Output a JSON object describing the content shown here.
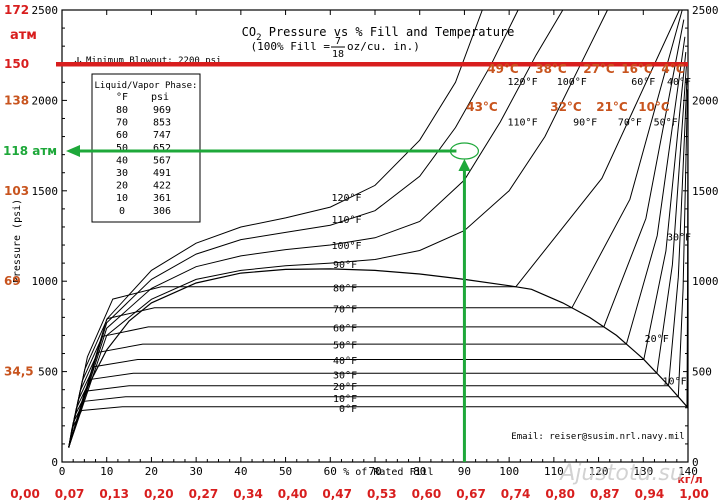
{
  "chart_data": {
    "type": "line",
    "title_main": "CO",
    "title_sub2": "2",
    "title_rest": " Pressure vs % Fill and Temperature",
    "subtitle_pre": "(100% Fill = ",
    "subtitle_num": "7",
    "subtitle_den": "18",
    "subtitle_post": " oz/cu. in.)",
    "xlabel": "% of Rated Fill",
    "ylabel": "Pressure (psi)",
    "xlim": [
      0,
      140
    ],
    "ylim": [
      0,
      2500
    ],
    "x_ticks": [
      0,
      10,
      20,
      30,
      40,
      50,
      60,
      70,
      80,
      90,
      100,
      110,
      120,
      130,
      140
    ],
    "y_ticks": [
      0,
      500,
      1000,
      1500,
      2000,
      2500
    ],
    "blowout_label": "Minimum Blowout: 2200 psi",
    "blowout_psi": 2200,
    "phase_table": {
      "title": "Liquid/Vapor Phase:",
      "col1": "°F",
      "col2": "psi",
      "rows": [
        [
          "80",
          "969"
        ],
        [
          "70",
          "853"
        ],
        [
          "60",
          "747"
        ],
        [
          "50",
          "652"
        ],
        [
          "40",
          "567"
        ],
        [
          "30",
          "491"
        ],
        [
          "20",
          "422"
        ],
        [
          "10",
          "361"
        ],
        [
          "0",
          "306"
        ]
      ]
    },
    "series": [
      {
        "name": "0°F",
        "fill_start": 1.0,
        "y_plateau": 306
      },
      {
        "name": "10°F",
        "fill_start": 1.045,
        "y_plateau": 361
      },
      {
        "name": "20°F",
        "fill_start": 1.09,
        "y_plateau": 422
      },
      {
        "name": "30°F",
        "fill_start": 1.13,
        "y_plateau": 491
      },
      {
        "name": "40°F",
        "fill_start": 1.18,
        "y_plateau": 567
      },
      {
        "name": "50°F",
        "fill_start": 1.23,
        "y_plateau": 652
      },
      {
        "name": "60°F",
        "fill_start": 1.3,
        "y_plateau": 747
      },
      {
        "name": "70°F",
        "fill_start": 1.37,
        "y_plateau": 853
      },
      {
        "name": "80°F",
        "fill_start": 1.45,
        "y_plateau": 969
      }
    ],
    "curve_labels_left": [
      {
        "text": "120°F",
        "x": 63,
        "y": 1465
      },
      {
        "text": "110°F",
        "x": 63,
        "y": 1345
      },
      {
        "text": "100°F",
        "x": 63,
        "y": 1200
      },
      {
        "text": "90°F",
        "x": 63,
        "y": 1095
      },
      {
        "text": "80°F",
        "x": 63,
        "y": 965
      },
      {
        "text": "70°F",
        "x": 63,
        "y": 850
      },
      {
        "text": "60°F",
        "x": 63,
        "y": 745
      },
      {
        "text": "50°F",
        "x": 63,
        "y": 650
      },
      {
        "text": "40°F",
        "x": 63,
        "y": 565
      },
      {
        "text": "30°F",
        "x": 63,
        "y": 485
      },
      {
        "text": "20°F",
        "x": 63,
        "y": 420
      },
      {
        "text": "10°F",
        "x": 63,
        "y": 355
      },
      {
        "text": "0°F",
        "x": 63,
        "y": 300
      }
    ],
    "curve_labels_right": [
      {
        "text": "120°F",
        "x": 103,
        "y": 2085
      },
      {
        "text": "110°F",
        "x": 103,
        "y": 1860
      },
      {
        "text": "100°F",
        "x": 114,
        "y": 2085
      },
      {
        "text": "90°F",
        "x": 117,
        "y": 1860
      },
      {
        "text": "70°F",
        "x": 127,
        "y": 1860
      },
      {
        "text": "60°F",
        "x": 130,
        "y": 2085
      },
      {
        "text": "50°F",
        "x": 135,
        "y": 1860
      },
      {
        "text": "40°F",
        "x": 138,
        "y": 2085
      },
      {
        "text": "30°F",
        "x": 138,
        "y": 1225
      },
      {
        "text": "20°F",
        "x": 133,
        "y": 665
      },
      {
        "text": "10°F",
        "x": 137,
        "y": 430
      }
    ],
    "celsius_top": [
      "49°C",
      "38°C",
      "27°C",
      "16°C",
      "4°C"
    ],
    "celsius_mid": [
      "43°C",
      "32°C",
      "21°C",
      "10°C"
    ],
    "atm_label": "атм",
    "atm_ticks": [
      "172",
      "150",
      "138",
      "118 атм",
      "103",
      "69",
      "34,5"
    ],
    "atm_psi": [
      2500,
      2200,
      2000,
      1720,
      1500,
      1000,
      500
    ],
    "kgl_ticks": [
      "0,00",
      "0,07",
      "0,13",
      "0,20",
      "0,27",
      "0,34",
      "0,40",
      "0,47",
      "0,53",
      "0,60",
      "0,67",
      "0,74",
      "0,80",
      "0,87",
      "0,94",
      "1,00"
    ],
    "kgl_unit": "кг/л",
    "marker": {
      "fill_percent": 90,
      "psi": 1720
    },
    "email": "Email: reiser@susim.nrl.navy.mil",
    "watermark": "Ajustotu.su",
    "colors": {
      "red": "#d81e1e",
      "green": "#1ea83a",
      "orange": "#c8541e",
      "blue": "#1a3da8"
    }
  }
}
